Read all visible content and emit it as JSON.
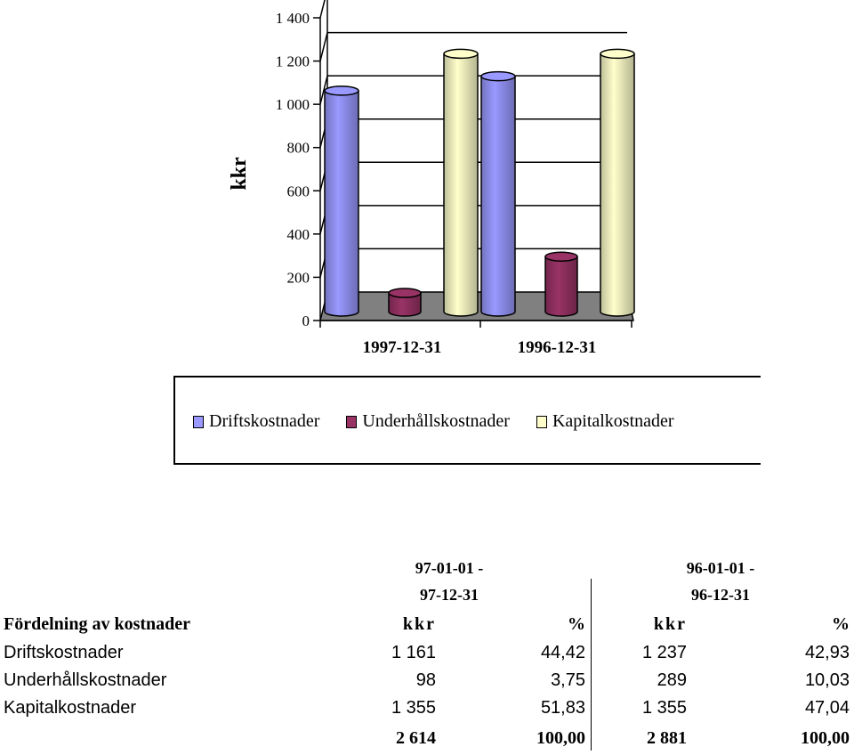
{
  "chart_data": {
    "type": "bar",
    "ylabel": "kkr",
    "ylim": [
      0,
      1400
    ],
    "yticks": [
      "0",
      "200",
      "400",
      "600",
      "800",
      "1 000",
      "1 200",
      "1 400"
    ],
    "yticks_values": [
      0,
      200,
      400,
      600,
      800,
      1000,
      1200,
      1400
    ],
    "categories": [
      "1997-12-31",
      "1996-12-31"
    ],
    "grid": true,
    "legend_position": "bottom",
    "series": [
      {
        "name": "Driftskostnader",
        "values": [
          1161,
          1237
        ],
        "color": "#9999ff"
      },
      {
        "name": "Underhållskostnader",
        "values": [
          98,
          289
        ],
        "color": "#993366"
      },
      {
        "name": "Kapitalkostnader",
        "values": [
          1355,
          1355
        ],
        "color": "#ffffcc"
      }
    ],
    "legend_labels": [
      "Driftskostnader",
      "Underhållskostnader",
      "Kapitalkostnader"
    ]
  },
  "table": {
    "period1": {
      "line1": "97-01-01 -",
      "line2": "97-12-31"
    },
    "period2": {
      "line1": "96-01-01 -",
      "line2": "96-12-31"
    },
    "header": {
      "label": "Fördelning av kostnader",
      "kkr1": "kkr",
      "pct1": "%",
      "kkr2": "kkr",
      "pct2": "%"
    },
    "rows": [
      {
        "label": "Driftskostnader",
        "kkr1": "1 161",
        "pct1": "44,42",
        "kkr2": "1 237",
        "pct2": "42,93"
      },
      {
        "label": "Underhållskostnader",
        "kkr1": "98",
        "pct1": "3,75",
        "kkr2": "289",
        "pct2": "10,03"
      },
      {
        "label": "Kapitalkostnader",
        "kkr1": "1 355",
        "pct1": "51,83",
        "kkr2": "1 355",
        "pct2": "47,04"
      }
    ],
    "total": {
      "kkr1": "2 614",
      "pct1": "100,00",
      "kkr2": "2 881",
      "pct2": "100,00"
    }
  }
}
